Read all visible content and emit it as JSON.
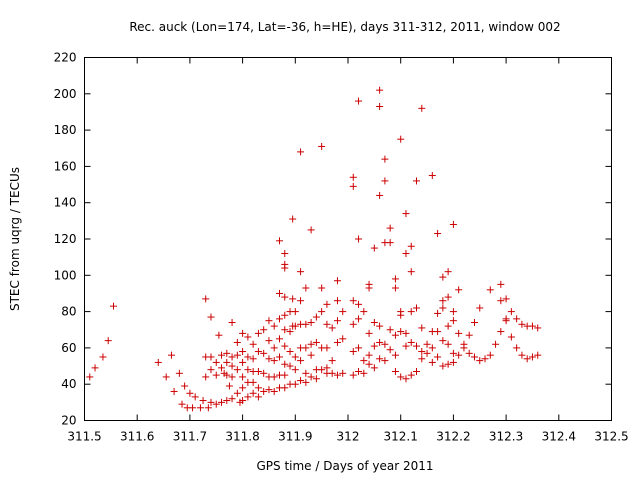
{
  "chart_data": {
    "type": "scatter",
    "title": "Rec. auck (Lon=174, Lat=-36, h=HE), days 311-312, 2011, window 002",
    "xlabel": "GPS time / Days of year 2011",
    "ylabel": "STEC from uqrg / TECUs",
    "xlim": [
      311.5,
      312.5
    ],
    "ylim": [
      20,
      220
    ],
    "xticks": [
      311.5,
      311.6,
      311.7,
      311.8,
      311.9,
      312,
      312.1,
      312.2,
      312.3,
      312.4,
      312.5
    ],
    "xtick_labels": [
      "311.5",
      "311.6",
      "311.7",
      "311.8",
      "311.9",
      "312",
      "312.1",
      "312.2",
      "312.3",
      "312.4",
      "312.5"
    ],
    "yticks": [
      20,
      40,
      60,
      80,
      100,
      120,
      140,
      160,
      180,
      200,
      220
    ],
    "ytick_labels": [
      "20",
      "40",
      "60",
      "80",
      "100",
      "120",
      "140",
      "160",
      "180",
      "200",
      "220"
    ],
    "grid": false,
    "marker_color": "#cc0000",
    "marker": "plus",
    "points": [
      [
        311.51,
        44
      ],
      [
        311.52,
        49
      ],
      [
        311.535,
        55
      ],
      [
        311.545,
        64
      ],
      [
        311.555,
        83
      ],
      [
        311.64,
        52
      ],
      [
        311.655,
        44
      ],
      [
        311.665,
        56
      ],
      [
        311.67,
        36
      ],
      [
        311.68,
        46
      ],
      [
        311.685,
        29
      ],
      [
        311.69,
        39
      ],
      [
        311.695,
        27
      ],
      [
        311.7,
        35
      ],
      [
        311.705,
        27
      ],
      [
        311.71,
        33
      ],
      [
        311.72,
        27
      ],
      [
        311.725,
        31
      ],
      [
        311.73,
        87
      ],
      [
        311.73,
        55
      ],
      [
        311.73,
        44
      ],
      [
        311.735,
        27
      ],
      [
        311.74,
        77
      ],
      [
        311.74,
        55
      ],
      [
        311.74,
        48
      ],
      [
        311.74,
        30
      ],
      [
        311.75,
        52
      ],
      [
        311.75,
        45
      ],
      [
        311.75,
        29
      ],
      [
        311.755,
        67
      ],
      [
        311.76,
        56
      ],
      [
        311.76,
        49
      ],
      [
        311.76,
        30
      ],
      [
        311.765,
        46
      ],
      [
        311.77,
        57
      ],
      [
        311.77,
        52
      ],
      [
        311.77,
        45
      ],
      [
        311.77,
        31
      ],
      [
        311.775,
        39
      ],
      [
        311.78,
        74
      ],
      [
        311.78,
        55
      ],
      [
        311.78,
        50
      ],
      [
        311.78,
        44
      ],
      [
        311.78,
        32
      ],
      [
        311.79,
        63
      ],
      [
        311.79,
        56
      ],
      [
        311.79,
        48
      ],
      [
        311.79,
        35
      ],
      [
        311.795,
        30
      ],
      [
        311.8,
        68
      ],
      [
        311.8,
        58
      ],
      [
        311.8,
        52
      ],
      [
        311.8,
        44
      ],
      [
        311.8,
        38
      ],
      [
        311.8,
        31
      ],
      [
        311.81,
        66
      ],
      [
        311.81,
        55
      ],
      [
        311.81,
        48
      ],
      [
        311.81,
        41
      ],
      [
        311.81,
        33
      ],
      [
        311.82,
        62
      ],
      [
        311.82,
        54
      ],
      [
        311.82,
        47
      ],
      [
        311.82,
        41
      ],
      [
        311.82,
        35
      ],
      [
        311.83,
        68
      ],
      [
        311.83,
        58
      ],
      [
        311.83,
        47
      ],
      [
        311.83,
        38
      ],
      [
        311.83,
        33
      ],
      [
        311.84,
        70
      ],
      [
        311.84,
        57
      ],
      [
        311.84,
        46
      ],
      [
        311.84,
        36
      ],
      [
        311.85,
        75
      ],
      [
        311.85,
        64
      ],
      [
        311.85,
        54
      ],
      [
        311.85,
        44
      ],
      [
        311.85,
        37
      ],
      [
        311.86,
        72
      ],
      [
        311.86,
        60
      ],
      [
        311.86,
        53
      ],
      [
        311.86,
        44
      ],
      [
        311.86,
        36
      ],
      [
        311.87,
        119
      ],
      [
        311.87,
        90
      ],
      [
        311.87,
        76
      ],
      [
        311.87,
        65
      ],
      [
        311.87,
        55
      ],
      [
        311.87,
        45
      ],
      [
        311.87,
        38
      ],
      [
        311.88,
        112
      ],
      [
        311.88,
        106
      ],
      [
        311.88,
        104
      ],
      [
        311.88,
        88
      ],
      [
        311.88,
        78
      ],
      [
        311.88,
        70
      ],
      [
        311.88,
        61
      ],
      [
        311.88,
        51
      ],
      [
        311.88,
        45
      ],
      [
        311.88,
        38
      ],
      [
        311.89,
        80
      ],
      [
        311.89,
        69
      ],
      [
        311.89,
        58
      ],
      [
        311.89,
        50
      ],
      [
        311.89,
        40
      ],
      [
        311.895,
        131
      ],
      [
        311.895,
        87
      ],
      [
        311.895,
        72
      ],
      [
        311.9,
        80
      ],
      [
        311.9,
        72
      ],
      [
        311.9,
        55
      ],
      [
        311.9,
        48
      ],
      [
        311.9,
        40
      ],
      [
        311.91,
        168
      ],
      [
        311.91,
        102
      ],
      [
        311.91,
        86
      ],
      [
        311.91,
        73
      ],
      [
        311.91,
        60
      ],
      [
        311.91,
        53
      ],
      [
        311.91,
        42
      ],
      [
        311.92,
        93
      ],
      [
        311.92,
        73
      ],
      [
        311.92,
        60
      ],
      [
        311.92,
        46
      ],
      [
        311.92,
        41
      ],
      [
        311.93,
        125
      ],
      [
        311.93,
        74
      ],
      [
        311.93,
        62
      ],
      [
        311.93,
        56
      ],
      [
        311.93,
        44
      ],
      [
        311.94,
        77
      ],
      [
        311.94,
        63
      ],
      [
        311.94,
        48
      ],
      [
        311.94,
        43
      ],
      [
        311.95,
        171
      ],
      [
        311.95,
        93
      ],
      [
        311.95,
        80
      ],
      [
        311.95,
        60
      ],
      [
        311.95,
        48
      ],
      [
        311.96,
        84
      ],
      [
        311.96,
        73
      ],
      [
        311.96,
        60
      ],
      [
        311.96,
        49
      ],
      [
        311.96,
        46
      ],
      [
        311.97,
        71
      ],
      [
        311.97,
        53
      ],
      [
        311.97,
        46
      ],
      [
        311.98,
        97
      ],
      [
        311.98,
        86
      ],
      [
        311.98,
        75
      ],
      [
        311.98,
        63
      ],
      [
        311.98,
        45
      ],
      [
        311.99,
        80
      ],
      [
        311.99,
        65
      ],
      [
        311.99,
        46
      ],
      [
        312.01,
        154
      ],
      [
        312.01,
        149
      ],
      [
        312.01,
        86
      ],
      [
        312.01,
        73
      ],
      [
        312.01,
        58
      ],
      [
        312.01,
        45
      ],
      [
        312.02,
        196
      ],
      [
        312.02,
        120
      ],
      [
        312.02,
        84
      ],
      [
        312.02,
        76
      ],
      [
        312.02,
        60
      ],
      [
        312.02,
        47
      ],
      [
        312.03,
        80
      ],
      [
        312.03,
        53
      ],
      [
        312.03,
        46
      ],
      [
        312.04,
        95
      ],
      [
        312.04,
        93
      ],
      [
        312.04,
        68
      ],
      [
        312.04,
        56
      ],
      [
        312.04,
        51
      ],
      [
        312.05,
        115
      ],
      [
        312.05,
        74
      ],
      [
        312.05,
        61
      ],
      [
        312.05,
        49
      ],
      [
        312.06,
        202
      ],
      [
        312.06,
        193
      ],
      [
        312.06,
        144
      ],
      [
        312.06,
        72
      ],
      [
        312.06,
        63
      ],
      [
        312.06,
        54
      ],
      [
        312.07,
        164
      ],
      [
        312.07,
        152
      ],
      [
        312.07,
        118
      ],
      [
        312.07,
        62
      ],
      [
        312.07,
        53
      ],
      [
        312.08,
        126
      ],
      [
        312.08,
        118
      ],
      [
        312.08,
        70
      ],
      [
        312.08,
        59
      ],
      [
        312.09,
        98
      ],
      [
        312.09,
        93
      ],
      [
        312.09,
        67
      ],
      [
        312.09,
        56
      ],
      [
        312.09,
        47
      ],
      [
        312.1,
        175
      ],
      [
        312.1,
        80
      ],
      [
        312.1,
        78
      ],
      [
        312.1,
        69
      ],
      [
        312.1,
        44
      ],
      [
        312.11,
        134
      ],
      [
        312.11,
        112
      ],
      [
        312.11,
        68
      ],
      [
        312.11,
        61
      ],
      [
        312.11,
        43
      ],
      [
        312.12,
        116
      ],
      [
        312.12,
        102
      ],
      [
        312.12,
        80
      ],
      [
        312.12,
        63
      ],
      [
        312.12,
        45
      ],
      [
        312.13,
        152
      ],
      [
        312.13,
        82
      ],
      [
        312.13,
        61
      ],
      [
        312.13,
        47
      ],
      [
        312.14,
        192
      ],
      [
        312.14,
        71
      ],
      [
        312.14,
        58
      ],
      [
        312.14,
        54
      ],
      [
        312.15,
        62
      ],
      [
        312.15,
        57
      ],
      [
        312.16,
        155
      ],
      [
        312.16,
        69
      ],
      [
        312.16,
        60
      ],
      [
        312.16,
        52
      ],
      [
        312.17,
        123
      ],
      [
        312.17,
        79
      ],
      [
        312.17,
        69
      ],
      [
        312.17,
        55
      ],
      [
        312.18,
        99
      ],
      [
        312.18,
        86
      ],
      [
        312.18,
        82
      ],
      [
        312.18,
        64
      ],
      [
        312.18,
        50
      ],
      [
        312.19,
        102
      ],
      [
        312.19,
        88
      ],
      [
        312.19,
        72
      ],
      [
        312.19,
        62
      ],
      [
        312.19,
        51
      ],
      [
        312.2,
        128
      ],
      [
        312.2,
        80
      ],
      [
        312.2,
        75
      ],
      [
        312.2,
        57
      ],
      [
        312.2,
        52
      ],
      [
        312.21,
        92
      ],
      [
        312.21,
        68
      ],
      [
        312.21,
        56
      ],
      [
        312.22,
        62
      ],
      [
        312.22,
        60
      ],
      [
        312.23,
        67
      ],
      [
        312.23,
        57
      ],
      [
        312.24,
        74
      ],
      [
        312.24,
        55
      ],
      [
        312.25,
        82
      ],
      [
        312.25,
        53
      ],
      [
        312.26,
        54
      ],
      [
        312.27,
        92
      ],
      [
        312.27,
        56
      ],
      [
        312.28,
        62
      ],
      [
        312.29,
        95
      ],
      [
        312.29,
        86
      ],
      [
        312.29,
        69
      ],
      [
        312.3,
        87
      ],
      [
        312.3,
        75
      ],
      [
        312.3,
        76
      ],
      [
        312.31,
        80
      ],
      [
        312.31,
        66
      ],
      [
        312.32,
        76
      ],
      [
        312.32,
        60
      ],
      [
        312.33,
        73
      ],
      [
        312.33,
        56
      ],
      [
        312.34,
        72
      ],
      [
        312.34,
        54
      ],
      [
        312.35,
        72
      ],
      [
        312.35,
        55
      ],
      [
        312.36,
        71
      ],
      [
        312.36,
        56
      ]
    ]
  }
}
